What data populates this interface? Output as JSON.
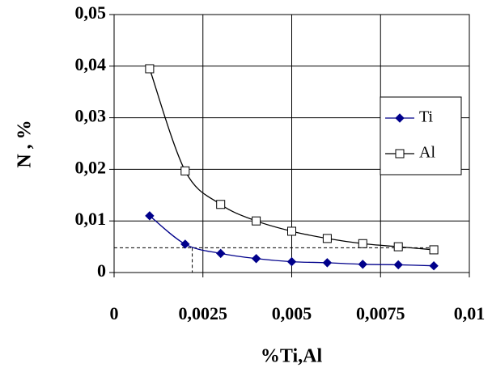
{
  "chart_data": {
    "type": "line",
    "x_label": "%Ti,Al",
    "y_label": "N , %",
    "x": [
      0.001,
      0.002,
      0.003,
      0.004,
      0.005,
      0.006,
      0.007,
      0.008,
      0.009
    ],
    "series": [
      {
        "name": "Ti",
        "color": "#00008b",
        "marker": "diamond",
        "values": [
          0.011,
          0.0055,
          0.0037,
          0.0027,
          0.0021,
          0.0019,
          0.0016,
          0.0015,
          0.0013
        ]
      },
      {
        "name": "Al",
        "color": "#000000",
        "marker": "square",
        "values": [
          0.0395,
          0.0197,
          0.0132,
          0.01,
          0.008,
          0.0066,
          0.0056,
          0.005,
          0.0044
        ]
      }
    ],
    "xlim": [
      0,
      0.01
    ],
    "xticks": [
      0,
      {
        "value": 0.0025,
        "label": "0,0025"
      },
      {
        "value": 0.005,
        "label": "0,005"
      },
      {
        "value": 0.0075,
        "label": "0,0075"
      },
      {
        "value": 0.01,
        "label": "0,01"
      }
    ],
    "ylim": [
      0,
      0.05
    ],
    "yticks": [
      0,
      {
        "value": 0.01,
        "label": "0,01"
      },
      {
        "value": 0.02,
        "label": "0,02"
      },
      {
        "value": 0.03,
        "label": "0,03"
      },
      {
        "value": 0.04,
        "label": "0,04"
      },
      {
        "value": 0.05,
        "label": "0,05"
      }
    ],
    "reference": {
      "x": 0.0022,
      "y": 0.0048
    },
    "grid": true,
    "legend": "right"
  }
}
